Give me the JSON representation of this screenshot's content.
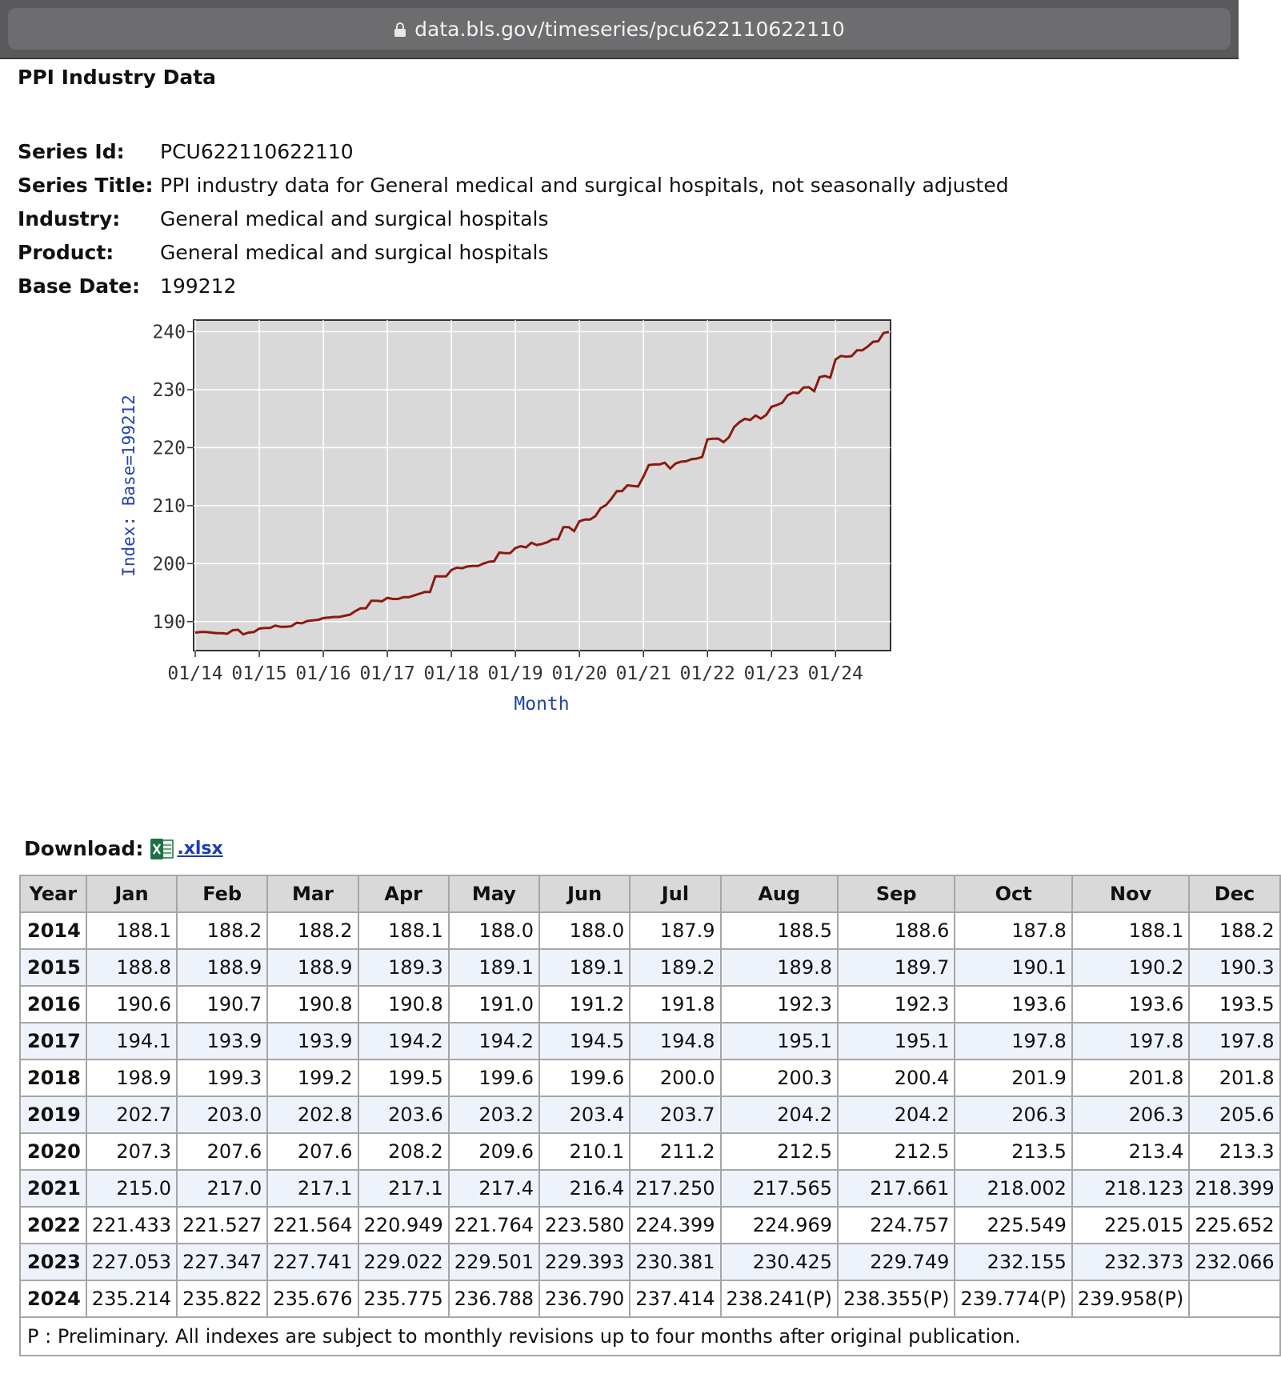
{
  "browser": {
    "url": "data.bls.gov/timeseries/pcu622110622110"
  },
  "page": {
    "heading": "PPI Industry Data",
    "meta": [
      {
        "label": "Series Id:",
        "value": "PCU622110622110"
      },
      {
        "label": "Series Title:",
        "value": "PPI industry data for General medical and surgical hospitals, not seasonally adjusted"
      },
      {
        "label": "Industry:",
        "value": "General medical and surgical hospitals"
      },
      {
        "label": "Product:",
        "value": "General medical and surgical hospitals"
      },
      {
        "label": "Base Date:",
        "value": "199212"
      }
    ]
  },
  "chart_data": {
    "type": "line",
    "xlabel": "Month",
    "ylabel": "Index: Base=199212",
    "x_ticks": [
      "01/14",
      "01/15",
      "01/16",
      "01/17",
      "01/18",
      "01/19",
      "01/20",
      "01/21",
      "01/22",
      "01/23",
      "01/24"
    ],
    "y_ticks": [
      190,
      200,
      210,
      220,
      230,
      240
    ],
    "ylim": [
      185,
      242
    ],
    "grid": true,
    "line_color": "#8b1a10",
    "x_start": "2014-01",
    "x_end": "2024-11",
    "values": [
      188.1,
      188.2,
      188.2,
      188.1,
      188.0,
      188.0,
      187.9,
      188.5,
      188.6,
      187.8,
      188.1,
      188.2,
      188.8,
      188.9,
      188.9,
      189.3,
      189.1,
      189.1,
      189.2,
      189.8,
      189.7,
      190.1,
      190.2,
      190.3,
      190.6,
      190.7,
      190.8,
      190.8,
      191.0,
      191.2,
      191.8,
      192.3,
      192.3,
      193.6,
      193.6,
      193.5,
      194.1,
      193.9,
      193.9,
      194.2,
      194.2,
      194.5,
      194.8,
      195.1,
      195.1,
      197.8,
      197.8,
      197.8,
      198.9,
      199.3,
      199.2,
      199.5,
      199.6,
      199.6,
      200.0,
      200.3,
      200.4,
      201.9,
      201.8,
      201.8,
      202.7,
      203.0,
      202.8,
      203.6,
      203.2,
      203.4,
      203.7,
      204.2,
      204.2,
      206.3,
      206.3,
      205.6,
      207.3,
      207.6,
      207.6,
      208.2,
      209.6,
      210.1,
      211.2,
      212.5,
      212.5,
      213.5,
      213.4,
      213.3,
      215.0,
      217.0,
      217.1,
      217.1,
      217.4,
      216.4,
      217.25,
      217.565,
      217.661,
      218.002,
      218.123,
      218.399,
      221.433,
      221.527,
      221.564,
      220.949,
      221.764,
      223.58,
      224.399,
      224.969,
      224.757,
      225.549,
      225.015,
      225.652,
      227.053,
      227.347,
      227.741,
      229.022,
      229.501,
      229.393,
      230.381,
      230.425,
      229.749,
      232.155,
      232.373,
      232.066,
      235.214,
      235.822,
      235.676,
      235.775,
      236.788,
      236.79,
      237.414,
      238.241,
      238.355,
      239.774,
      239.958
    ]
  },
  "download": {
    "label": "Download:",
    "link_text": ".xlsx"
  },
  "table": {
    "headers": [
      "Year",
      "Jan",
      "Feb",
      "Mar",
      "Apr",
      "May",
      "Jun",
      "Jul",
      "Aug",
      "Sep",
      "Oct",
      "Nov",
      "Dec"
    ],
    "rows": [
      [
        "2014",
        "188.1",
        "188.2",
        "188.2",
        "188.1",
        "188.0",
        "188.0",
        "187.9",
        "188.5",
        "188.6",
        "187.8",
        "188.1",
        "188.2"
      ],
      [
        "2015",
        "188.8",
        "188.9",
        "188.9",
        "189.3",
        "189.1",
        "189.1",
        "189.2",
        "189.8",
        "189.7",
        "190.1",
        "190.2",
        "190.3"
      ],
      [
        "2016",
        "190.6",
        "190.7",
        "190.8",
        "190.8",
        "191.0",
        "191.2",
        "191.8",
        "192.3",
        "192.3",
        "193.6",
        "193.6",
        "193.5"
      ],
      [
        "2017",
        "194.1",
        "193.9",
        "193.9",
        "194.2",
        "194.2",
        "194.5",
        "194.8",
        "195.1",
        "195.1",
        "197.8",
        "197.8",
        "197.8"
      ],
      [
        "2018",
        "198.9",
        "199.3",
        "199.2",
        "199.5",
        "199.6",
        "199.6",
        "200.0",
        "200.3",
        "200.4",
        "201.9",
        "201.8",
        "201.8"
      ],
      [
        "2019",
        "202.7",
        "203.0",
        "202.8",
        "203.6",
        "203.2",
        "203.4",
        "203.7",
        "204.2",
        "204.2",
        "206.3",
        "206.3",
        "205.6"
      ],
      [
        "2020",
        "207.3",
        "207.6",
        "207.6",
        "208.2",
        "209.6",
        "210.1",
        "211.2",
        "212.5",
        "212.5",
        "213.5",
        "213.4",
        "213.3"
      ],
      [
        "2021",
        "215.0",
        "217.0",
        "217.1",
        "217.1",
        "217.4",
        "216.4",
        "217.250",
        "217.565",
        "217.661",
        "218.002",
        "218.123",
        "218.399"
      ],
      [
        "2022",
        "221.433",
        "221.527",
        "221.564",
        "220.949",
        "221.764",
        "223.580",
        "224.399",
        "224.969",
        "224.757",
        "225.549",
        "225.015",
        "225.652"
      ],
      [
        "2023",
        "227.053",
        "227.347",
        "227.741",
        "229.022",
        "229.501",
        "229.393",
        "230.381",
        "230.425",
        "229.749",
        "232.155",
        "232.373",
        "232.066"
      ],
      [
        "2024",
        "235.214",
        "235.822",
        "235.676",
        "235.775",
        "236.788",
        "236.790",
        "237.414",
        "238.241(P)",
        "238.355(P)",
        "239.774(P)",
        "239.958(P)",
        ""
      ]
    ],
    "footnote": "P : Preliminary. All indexes are subject to monthly revisions up to four months after original publication."
  }
}
